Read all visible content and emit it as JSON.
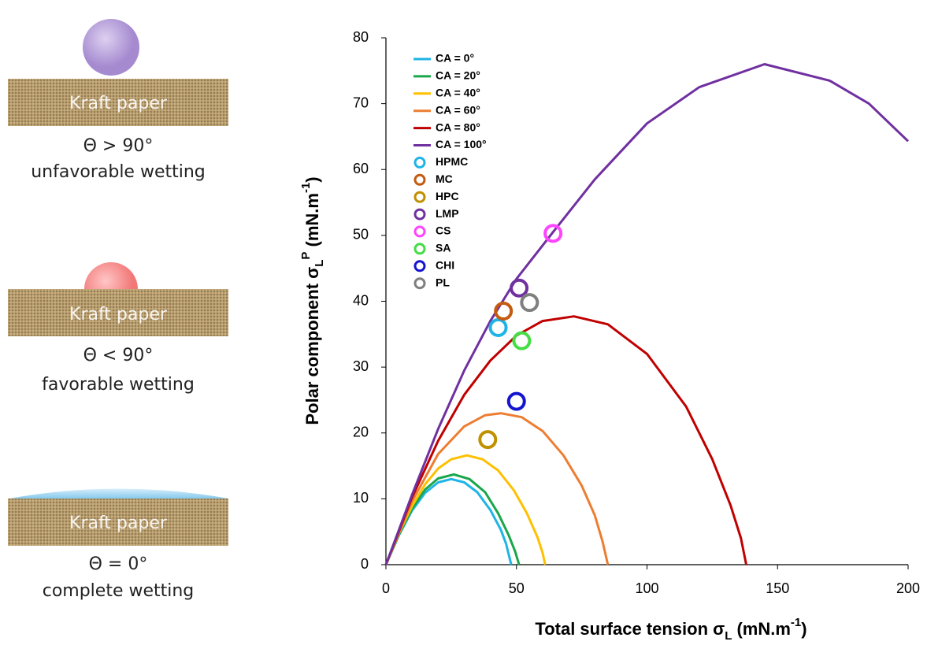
{
  "illustration": {
    "cases": [
      {
        "paper": "Kraft paper",
        "angle": "Θ > 90°",
        "description": "unfavorable wetting"
      },
      {
        "paper": "Kraft paper",
        "angle": "Θ < 90°",
        "description": "favorable wetting"
      },
      {
        "paper": "Kraft paper",
        "angle": "Θ = 0°",
        "description": "complete wetting"
      }
    ]
  },
  "chart_data": {
    "type": "line",
    "xlabel": [
      "Total surface tension σ",
      "L",
      " (mN.m",
      "-1",
      ")"
    ],
    "ylabel": [
      "Polar component  σ",
      "L",
      "P",
      " (mN.m",
      "-1",
      ")"
    ],
    "xlim": [
      0,
      200
    ],
    "xticks": [
      0,
      50,
      100,
      150,
      200
    ],
    "ylim": [
      0,
      80
    ],
    "yticks": [
      0,
      10,
      20,
      30,
      40,
      50,
      60,
      70,
      80
    ],
    "legend": "upper left",
    "series": [
      {
        "name": "CA = 0°",
        "color": "#1fb4e6",
        "x": [
          0,
          5,
          10,
          15,
          20,
          25,
          30,
          35,
          40,
          44,
          46,
          48
        ],
        "values": [
          0,
          4.5,
          8.2,
          10.9,
          12.5,
          13,
          12.5,
          11,
          8.3,
          5.3,
          3.2,
          0
        ]
      },
      {
        "name": "CA = 20°",
        "color": "#1aa64a",
        "x": [
          0,
          5,
          10,
          15,
          20,
          26,
          32,
          38,
          43,
          47,
          49.5,
          51
        ],
        "values": [
          0,
          4.6,
          8.5,
          11.4,
          13.1,
          13.7,
          13,
          11,
          7.8,
          4.5,
          2,
          0
        ]
      },
      {
        "name": "CA = 40°",
        "color": "#ffc000",
        "x": [
          0,
          5,
          10,
          15,
          20,
          25,
          31,
          37,
          43,
          49,
          54,
          58,
          60,
          61
        ],
        "values": [
          0,
          4.8,
          8.9,
          12.2,
          14.6,
          16,
          16.6,
          16,
          14.3,
          11.3,
          7.8,
          4.2,
          1.8,
          0
        ]
      },
      {
        "name": "CA = 60°",
        "color": "#ed7d31",
        "x": [
          0,
          10,
          20,
          30,
          38,
          44,
          52,
          60,
          68,
          75,
          80,
          83,
          85
        ],
        "values": [
          0,
          9.6,
          16.8,
          21,
          22.7,
          23,
          22.4,
          20.3,
          16.6,
          12,
          7.5,
          3.5,
          0
        ]
      },
      {
        "name": "CA = 80°",
        "color": "#c00000",
        "x": [
          0,
          10,
          20,
          30,
          40,
          50,
          60,
          72,
          85,
          100,
          115,
          125,
          132,
          136,
          138
        ],
        "values": [
          0,
          10.2,
          18.8,
          25.8,
          31,
          34.8,
          37,
          37.7,
          36.5,
          32,
          24,
          16,
          9,
          4,
          0
        ]
      },
      {
        "name": "CA = 100°",
        "color": "#7030a0",
        "x": [
          0,
          10,
          20,
          30,
          40,
          50,
          64,
          80,
          100,
          120,
          145,
          170,
          185,
          200
        ],
        "values": [
          0,
          10.6,
          20.6,
          29.5,
          37,
          43.4,
          50.5,
          58.5,
          67,
          72.5,
          76,
          73.5,
          70,
          64.3
        ]
      },
      {
        "name": "HPMC",
        "color": "#1fb4e6",
        "marker": "circle",
        "x": [
          43
        ],
        "values": [
          36
        ]
      },
      {
        "name": "MC",
        "color": "#c55a11",
        "marker": "circle",
        "x": [
          45
        ],
        "values": [
          38.5
        ]
      },
      {
        "name": "HPC",
        "color": "#bf9000",
        "marker": "circle",
        "x": [
          39
        ],
        "values": [
          19
        ]
      },
      {
        "name": "LMP",
        "color": "#7030a0",
        "marker": "circle",
        "x": [
          51
        ],
        "values": [
          42
        ]
      },
      {
        "name": "CS",
        "color": "#ff44ff",
        "marker": "circle",
        "x": [
          64
        ],
        "values": [
          50.3
        ]
      },
      {
        "name": "SA",
        "color": "#44dd44",
        "marker": "circle",
        "x": [
          52
        ],
        "values": [
          34
        ]
      },
      {
        "name": "CHI",
        "color": "#1515d0",
        "marker": "circle",
        "x": [
          50
        ],
        "values": [
          24.8
        ]
      },
      {
        "name": "PL",
        "color": "#7f7f7f",
        "marker": "circle",
        "x": [
          55
        ],
        "values": [
          39.8
        ]
      }
    ]
  }
}
